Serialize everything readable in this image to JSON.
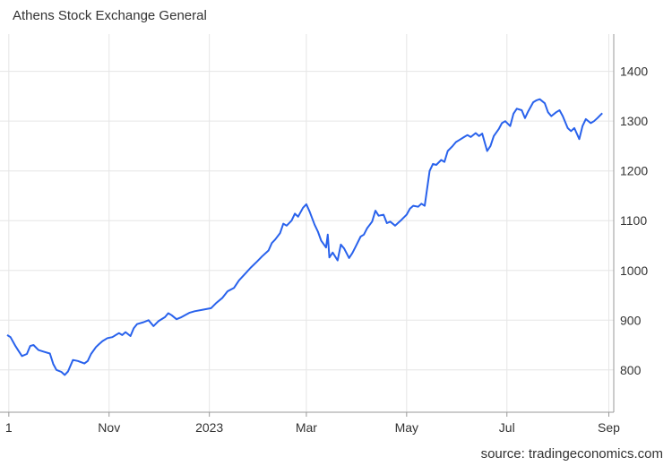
{
  "header": {
    "title": "Athens Stock Exchange General"
  },
  "footer": {
    "source": "source: tradingeconomics.com"
  },
  "chart_data": {
    "type": "line",
    "title": "Athens Stock Exchange General",
    "xlabel": "",
    "ylabel": "",
    "ylim": [
      715,
      1475
    ],
    "yticks": [
      800,
      900,
      1000,
      1100,
      1200,
      1300,
      1400
    ],
    "y_axis_position": "right",
    "grid": true,
    "legend": "none",
    "color": "#2962ec",
    "xlim": [
      "2022-08-31",
      "2023-08-29"
    ],
    "xticks": [
      {
        "label": "1",
        "date": "2022-09-01"
      },
      {
        "label": "Nov",
        "date": "2022-11-01"
      },
      {
        "label": "2023",
        "date": "2023-01-01"
      },
      {
        "label": "Mar",
        "date": "2023-03-01"
      },
      {
        "label": "May",
        "date": "2023-05-01"
      },
      {
        "label": "Jul",
        "date": "2023-07-01"
      },
      {
        "label": "Sep",
        "date": "2023-09-01"
      }
    ],
    "series": [
      {
        "values": [
          [
            "2022-08-31",
            870
          ],
          [
            "2022-09-02",
            866
          ],
          [
            "2022-09-05",
            848
          ],
          [
            "2022-09-07",
            838
          ],
          [
            "2022-09-09",
            828
          ],
          [
            "2022-09-12",
            832
          ],
          [
            "2022-09-14",
            848
          ],
          [
            "2022-09-16",
            850
          ],
          [
            "2022-09-19",
            840
          ],
          [
            "2022-09-22",
            837
          ],
          [
            "2022-09-26",
            833
          ],
          [
            "2022-09-28",
            812
          ],
          [
            "2022-09-30",
            800
          ],
          [
            "2022-10-03",
            796
          ],
          [
            "2022-10-05",
            790
          ],
          [
            "2022-10-07",
            797
          ],
          [
            "2022-10-10",
            820
          ],
          [
            "2022-10-13",
            818
          ],
          [
            "2022-10-17",
            813
          ],
          [
            "2022-10-19",
            818
          ],
          [
            "2022-10-21",
            832
          ],
          [
            "2022-10-24",
            846
          ],
          [
            "2022-10-26",
            852
          ],
          [
            "2022-10-28",
            858
          ],
          [
            "2022-10-31",
            864
          ],
          [
            "2022-11-03",
            866
          ],
          [
            "2022-11-07",
            874
          ],
          [
            "2022-11-09",
            870
          ],
          [
            "2022-11-11",
            876
          ],
          [
            "2022-11-14",
            868
          ],
          [
            "2022-11-16",
            884
          ],
          [
            "2022-11-18",
            892
          ],
          [
            "2022-11-22",
            896
          ],
          [
            "2022-11-25",
            900
          ],
          [
            "2022-11-28",
            888
          ],
          [
            "2022-12-01",
            898
          ],
          [
            "2022-12-05",
            906
          ],
          [
            "2022-12-07",
            914
          ],
          [
            "2022-12-09",
            910
          ],
          [
            "2022-12-12",
            902
          ],
          [
            "2022-12-15",
            906
          ],
          [
            "2022-12-20",
            915
          ],
          [
            "2022-12-23",
            918
          ],
          [
            "2022-12-28",
            921
          ],
          [
            "2023-01-02",
            924
          ],
          [
            "2023-01-05",
            934
          ],
          [
            "2023-01-09",
            945
          ],
          [
            "2023-01-12",
            958
          ],
          [
            "2023-01-16",
            965
          ],
          [
            "2023-01-19",
            980
          ],
          [
            "2023-01-23",
            994
          ],
          [
            "2023-01-26",
            1005
          ],
          [
            "2023-01-30",
            1018
          ],
          [
            "2023-02-02",
            1028
          ],
          [
            "2023-02-06",
            1040
          ],
          [
            "2023-02-08",
            1055
          ],
          [
            "2023-02-10",
            1062
          ],
          [
            "2023-02-13",
            1075
          ],
          [
            "2023-02-15",
            1094
          ],
          [
            "2023-02-17",
            1090
          ],
          [
            "2023-02-20",
            1100
          ],
          [
            "2023-02-22",
            1114
          ],
          [
            "2023-02-24",
            1108
          ],
          [
            "2023-02-27",
            1126
          ],
          [
            "2023-03-01",
            1133
          ],
          [
            "2023-03-03",
            1118
          ],
          [
            "2023-03-06",
            1092
          ],
          [
            "2023-03-08",
            1078
          ],
          [
            "2023-03-10",
            1060
          ],
          [
            "2023-03-13",
            1046
          ],
          [
            "2023-03-14",
            1072
          ],
          [
            "2023-03-15",
            1026
          ],
          [
            "2023-03-17",
            1036
          ],
          [
            "2023-03-20",
            1020
          ],
          [
            "2023-03-22",
            1052
          ],
          [
            "2023-03-24",
            1044
          ],
          [
            "2023-03-27",
            1025
          ],
          [
            "2023-03-29",
            1035
          ],
          [
            "2023-03-31",
            1048
          ],
          [
            "2023-04-03",
            1068
          ],
          [
            "2023-04-05",
            1072
          ],
          [
            "2023-04-07",
            1085
          ],
          [
            "2023-04-10",
            1098
          ],
          [
            "2023-04-12",
            1120
          ],
          [
            "2023-04-14",
            1110
          ],
          [
            "2023-04-17",
            1112
          ],
          [
            "2023-04-19",
            1095
          ],
          [
            "2023-04-21",
            1098
          ],
          [
            "2023-04-24",
            1090
          ],
          [
            "2023-04-26",
            1096
          ],
          [
            "2023-04-28",
            1102
          ],
          [
            "2023-05-01",
            1112
          ],
          [
            "2023-05-03",
            1124
          ],
          [
            "2023-05-05",
            1130
          ],
          [
            "2023-05-08",
            1128
          ],
          [
            "2023-05-10",
            1134
          ],
          [
            "2023-05-12",
            1130
          ],
          [
            "2023-05-15",
            1200
          ],
          [
            "2023-05-17",
            1214
          ],
          [
            "2023-05-19",
            1212
          ],
          [
            "2023-05-22",
            1222
          ],
          [
            "2023-05-24",
            1218
          ],
          [
            "2023-05-26",
            1240
          ],
          [
            "2023-05-29",
            1250
          ],
          [
            "2023-05-31",
            1258
          ],
          [
            "2023-06-02",
            1262
          ],
          [
            "2023-06-05",
            1268
          ],
          [
            "2023-06-07",
            1272
          ],
          [
            "2023-06-09",
            1268
          ],
          [
            "2023-06-12",
            1276
          ],
          [
            "2023-06-14",
            1270
          ],
          [
            "2023-06-16",
            1275
          ],
          [
            "2023-06-19",
            1240
          ],
          [
            "2023-06-21",
            1250
          ],
          [
            "2023-06-23",
            1270
          ],
          [
            "2023-06-26",
            1284
          ],
          [
            "2023-06-28",
            1296
          ],
          [
            "2023-06-30",
            1300
          ],
          [
            "2023-07-03",
            1290
          ],
          [
            "2023-07-05",
            1315
          ],
          [
            "2023-07-07",
            1325
          ],
          [
            "2023-07-10",
            1322
          ],
          [
            "2023-07-12",
            1306
          ],
          [
            "2023-07-14",
            1320
          ],
          [
            "2023-07-17",
            1338
          ],
          [
            "2023-07-19",
            1342
          ],
          [
            "2023-07-21",
            1344
          ],
          [
            "2023-07-24",
            1336
          ],
          [
            "2023-07-26",
            1318
          ],
          [
            "2023-07-28",
            1310
          ],
          [
            "2023-07-31",
            1318
          ],
          [
            "2023-08-02",
            1322
          ],
          [
            "2023-08-04",
            1310
          ],
          [
            "2023-08-07",
            1286
          ],
          [
            "2023-08-09",
            1280
          ],
          [
            "2023-08-11",
            1286
          ],
          [
            "2023-08-14",
            1264
          ],
          [
            "2023-08-16",
            1290
          ],
          [
            "2023-08-18",
            1304
          ],
          [
            "2023-08-21",
            1296
          ],
          [
            "2023-08-23",
            1300
          ],
          [
            "2023-08-25",
            1306
          ],
          [
            "2023-08-28",
            1316
          ]
        ]
      }
    ]
  }
}
